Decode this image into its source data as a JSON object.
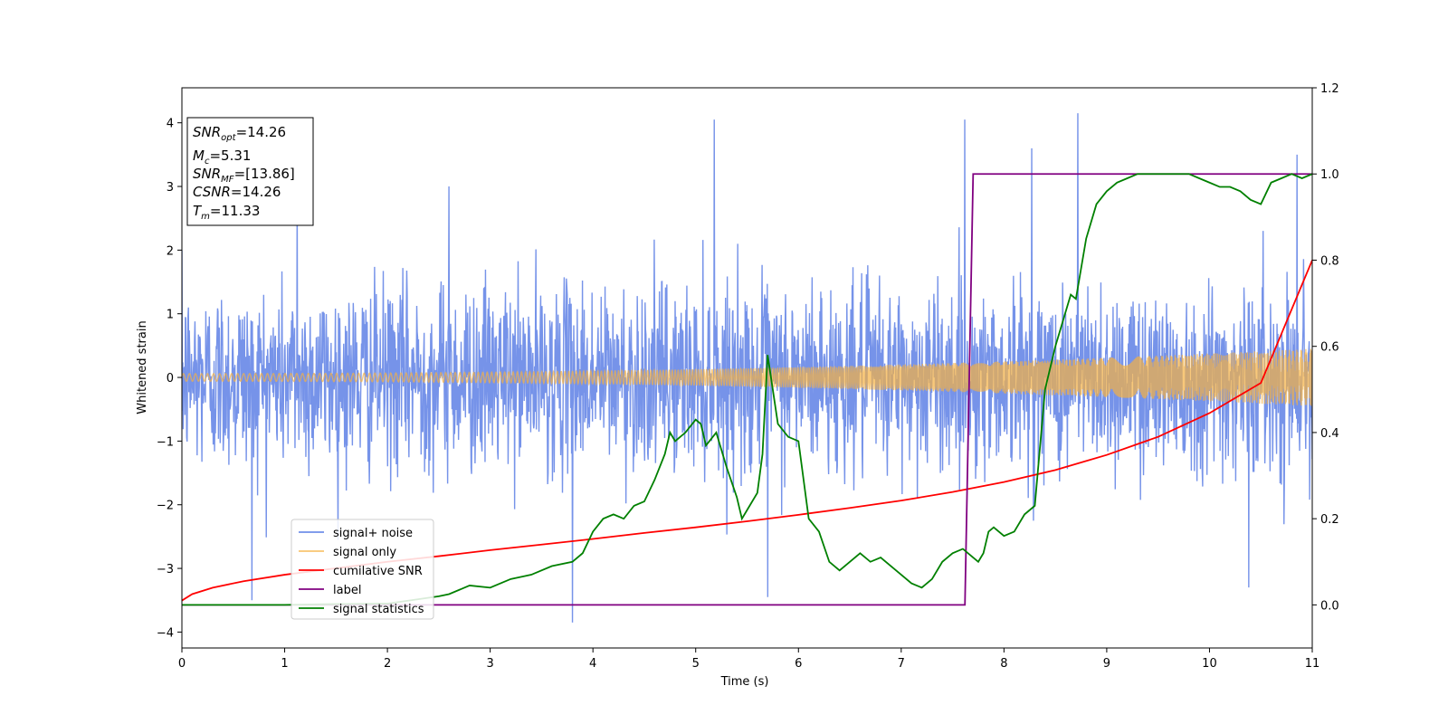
{
  "chart_data": {
    "type": "line",
    "xlabel": "Time (s)",
    "ylabel": "Whitened strain",
    "xlim": [
      0,
      11
    ],
    "ylim_left": [
      -4.25,
      4.55
    ],
    "ylim_right": [
      -0.1,
      1.2
    ],
    "x_ticks": [
      0,
      1,
      2,
      3,
      4,
      5,
      6,
      7,
      8,
      9,
      10,
      11
    ],
    "y_ticks_left": [
      -4,
      -3,
      -2,
      -1,
      0,
      1,
      2,
      3,
      4
    ],
    "y_ticks_right": [
      0.0,
      0.2,
      0.4,
      0.6,
      0.8,
      1.0,
      1.2
    ],
    "y_ticks_left_labels": [
      "−4",
      "−3",
      "−2",
      "−1",
      "0",
      "1",
      "2",
      "3",
      "4"
    ],
    "y_ticks_right_labels": [
      "0.0",
      "0.2",
      "0.4",
      "0.6",
      "0.8",
      "1.0",
      "1.2"
    ],
    "legend_position": "lower-left",
    "series": [
      {
        "name": "signal+ noise",
        "axis": "left",
        "color": "#4169e1",
        "kind": "noise_envelope",
        "spikes": [
          [
            0.68,
            -3.5
          ],
          [
            1.12,
            2.95
          ],
          [
            2.6,
            3.0
          ],
          [
            3.8,
            -3.85
          ],
          [
            5.18,
            4.05
          ],
          [
            5.7,
            -3.45
          ],
          [
            7.62,
            4.05
          ],
          [
            8.27,
            3.6
          ],
          [
            8.72,
            4.15
          ],
          [
            10.38,
            -3.3
          ],
          [
            10.85,
            3.5
          ]
        ]
      },
      {
        "name": "signal only",
        "axis": "left",
        "color": "#f5b041",
        "kind": "chirp",
        "amplitude_start": 0.06,
        "amplitude_end": 0.45
      },
      {
        "name": "cumilative SNR",
        "axis": "right",
        "color": "#ff0000",
        "x": [
          0,
          0.1,
          0.3,
          0.6,
          1,
          1.5,
          2,
          2.5,
          3,
          3.5,
          4,
          4.5,
          5,
          5.5,
          6,
          6.5,
          7,
          7.5,
          8,
          8.5,
          9,
          9.5,
          10,
          10.5,
          11
        ],
        "y": [
          0.01,
          0.025,
          0.04,
          0.055,
          0.07,
          0.085,
          0.1,
          0.113,
          0.127,
          0.14,
          0.153,
          0.167,
          0.18,
          0.194,
          0.209,
          0.225,
          0.242,
          0.262,
          0.285,
          0.313,
          0.348,
          0.39,
          0.445,
          0.515,
          0.8
        ]
      },
      {
        "name": "label",
        "axis": "right",
        "color": "#800080",
        "x": [
          0,
          7.62,
          7.7,
          11
        ],
        "y": [
          0,
          0,
          1,
          1
        ]
      },
      {
        "name": "signal statistics",
        "axis": "right",
        "color": "#008000",
        "x": [
          0,
          0.5,
          1,
          1.5,
          2,
          2.5,
          2.6,
          2.8,
          3,
          3.2,
          3.4,
          3.6,
          3.8,
          3.9,
          4.0,
          4.1,
          4.2,
          4.3,
          4.4,
          4.5,
          4.6,
          4.7,
          4.75,
          4.8,
          4.9,
          5.0,
          5.05,
          5.1,
          5.2,
          5.3,
          5.4,
          5.45,
          5.5,
          5.6,
          5.65,
          5.7,
          5.75,
          5.8,
          5.9,
          6.0,
          6.1,
          6.2,
          6.3,
          6.4,
          6.5,
          6.6,
          6.7,
          6.8,
          6.9,
          7.0,
          7.1,
          7.2,
          7.3,
          7.4,
          7.5,
          7.6,
          7.7,
          7.75,
          7.8,
          7.85,
          7.9,
          8.0,
          8.1,
          8.2,
          8.3,
          8.4,
          8.45,
          8.5,
          8.6,
          8.65,
          8.7,
          8.8,
          8.9,
          9.0,
          9.1,
          9.2,
          9.3,
          9.4,
          9.5,
          9.6,
          9.7,
          9.8,
          9.9,
          10.0,
          10.1,
          10.2,
          10.3,
          10.4,
          10.5,
          10.6,
          10.7,
          10.8,
          10.9,
          11.0
        ],
        "y": [
          0.0,
          0.0,
          0.0,
          0.002,
          0.003,
          0.02,
          0.025,
          0.045,
          0.04,
          0.06,
          0.07,
          0.09,
          0.1,
          0.12,
          0.17,
          0.2,
          0.21,
          0.2,
          0.23,
          0.24,
          0.29,
          0.35,
          0.4,
          0.38,
          0.4,
          0.43,
          0.42,
          0.37,
          0.4,
          0.32,
          0.25,
          0.2,
          0.22,
          0.26,
          0.35,
          0.58,
          0.5,
          0.42,
          0.39,
          0.38,
          0.2,
          0.17,
          0.1,
          0.08,
          0.1,
          0.12,
          0.1,
          0.11,
          0.09,
          0.07,
          0.05,
          0.04,
          0.06,
          0.1,
          0.12,
          0.13,
          0.11,
          0.1,
          0.12,
          0.17,
          0.18,
          0.16,
          0.17,
          0.21,
          0.23,
          0.5,
          0.55,
          0.6,
          0.68,
          0.72,
          0.71,
          0.85,
          0.93,
          0.96,
          0.98,
          0.99,
          1.0,
          1.0,
          1.0,
          1.0,
          1.0,
          1.0,
          0.99,
          0.98,
          0.97,
          0.97,
          0.96,
          0.94,
          0.93,
          0.98,
          0.99,
          1.0,
          0.99,
          1.0
        ]
      }
    ],
    "annotation": {
      "lines": [
        {
          "base": "SNR",
          "sub": "opt",
          "value": "=14.26"
        },
        {
          "base": "M",
          "sub": "c",
          "value": "=5.31"
        },
        {
          "base": "SNR",
          "sub": "MF",
          "value": "=[13.86]"
        },
        {
          "base": "CSNR",
          "sub": "",
          "value": "=14.26"
        },
        {
          "base": "T",
          "sub": "m",
          "value": "=11.33"
        }
      ]
    }
  }
}
